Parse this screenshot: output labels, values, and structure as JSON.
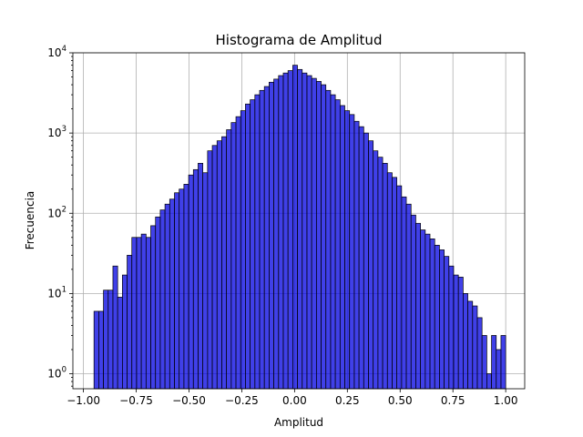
{
  "chart_data": {
    "type": "bar",
    "title": "Histograma de Amplitud",
    "xlabel": "Amplitud",
    "ylabel": "Frecuencia",
    "y_scale": "log",
    "grid": true,
    "xlim": [
      -1.05,
      1.09
    ],
    "ylim": [
      0.65,
      10000
    ],
    "x_ticks": [
      -1.0,
      -0.75,
      -0.5,
      -0.25,
      0.0,
      0.25,
      0.5,
      0.75,
      1.0
    ],
    "x_tick_labels": [
      "−1.00",
      "−0.75",
      "−0.50",
      "−0.25",
      "0.00",
      "0.25",
      "0.50",
      "0.75",
      "1.00"
    ],
    "y_ticks": [
      1,
      10,
      100,
      1000,
      10000
    ],
    "y_tick_labels": [
      {
        "base": "10",
        "exp": "0"
      },
      {
        "base": "10",
        "exp": "1"
      },
      {
        "base": "10",
        "exp": "2"
      },
      {
        "base": "10",
        "exp": "3"
      },
      {
        "base": "10",
        "exp": "4"
      }
    ],
    "bar_color": "#0000e0",
    "bar_edge_color": "#000000",
    "bin_range": [
      -0.95,
      1.0
    ],
    "values": [
      6,
      6,
      11,
      11,
      22,
      9,
      17,
      30,
      50,
      50,
      55,
      50,
      70,
      90,
      110,
      130,
      150,
      180,
      200,
      230,
      300,
      350,
      420,
      320,
      600,
      700,
      800,
      900,
      1100,
      1350,
      1600,
      1900,
      2300,
      2600,
      3000,
      3400,
      3800,
      4300,
      4700,
      5200,
      5600,
      6000,
      7000,
      6200,
      5600,
      5200,
      4800,
      4400,
      4000,
      3400,
      3000,
      2600,
      2200,
      1900,
      1700,
      1400,
      1200,
      1000,
      800,
      600,
      500,
      420,
      320,
      280,
      220,
      160,
      130,
      95,
      75,
      62,
      55,
      48,
      40,
      35,
      29,
      22,
      17,
      16,
      10,
      8,
      7,
      5,
      3,
      1,
      3,
      2,
      3
    ]
  }
}
